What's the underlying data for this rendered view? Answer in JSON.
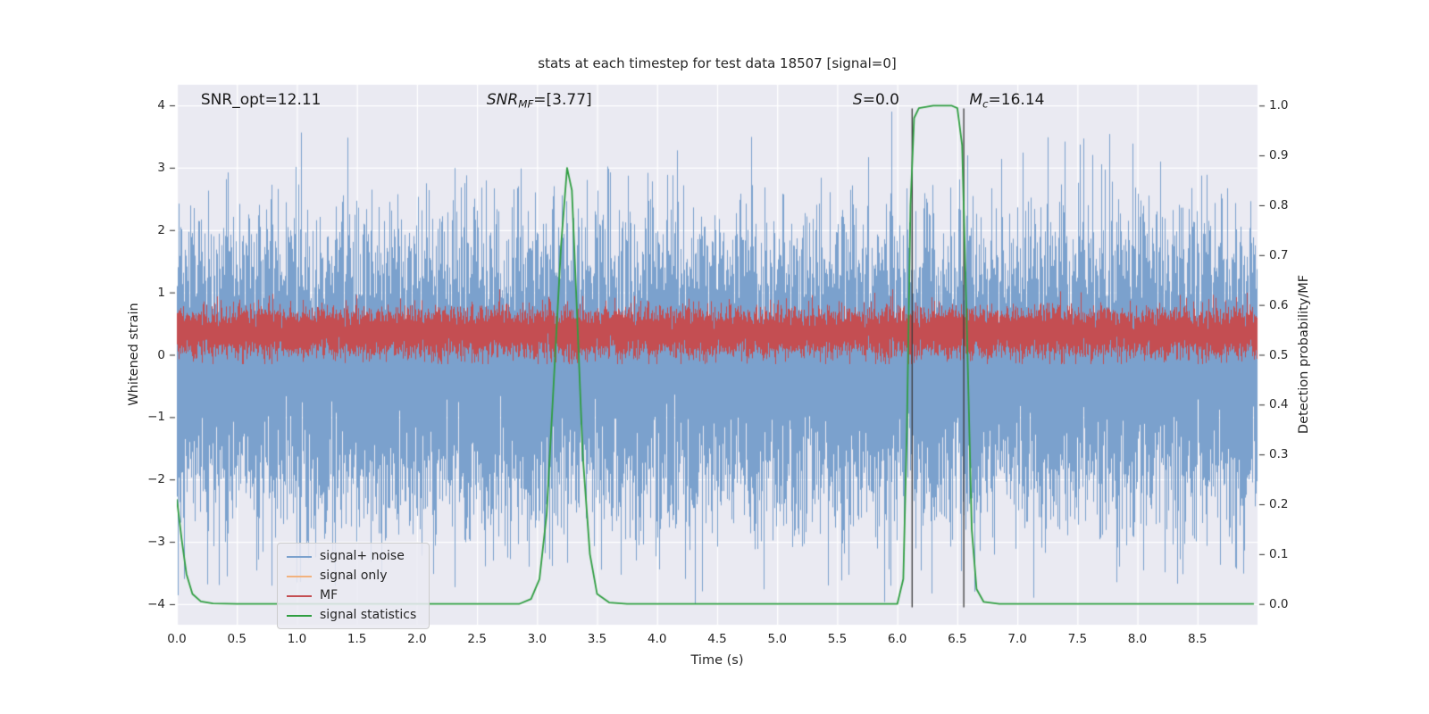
{
  "figure": {
    "title": "stats at each timestep for test data 18507 [signal=0]",
    "axes_bg": "#eaeaf2",
    "grid_color": "#ffffff",
    "text_color": "#262626",
    "tick_color": "#262626"
  },
  "chart_data": {
    "type": "line",
    "title": "stats at each timestep for test data 18507 [signal=0]",
    "xlabel": "Time (s)",
    "ylabel_left": "Whitened strain",
    "ylabel_right": "Detection probability/MF",
    "xlim": [
      0.0,
      9.0
    ],
    "ylim_left": [
      -4.33,
      4.33
    ],
    "ylim_right": [
      -0.0417,
      1.0417
    ],
    "grid": true,
    "x_ticks": [
      0.0,
      0.5,
      1.0,
      1.5,
      2.0,
      2.5,
      3.0,
      3.5,
      4.0,
      4.5,
      5.0,
      5.5,
      6.0,
      6.5,
      7.0,
      7.5,
      8.0,
      8.5
    ],
    "y_ticks_left": [
      -4,
      -3,
      -2,
      -1,
      0,
      1,
      2,
      3,
      4
    ],
    "y_ticks_right": [
      0.0,
      0.1,
      0.2,
      0.3,
      0.4,
      0.5,
      0.6,
      0.7,
      0.8,
      0.9,
      1.0
    ],
    "series": [
      {
        "name": "signal+ noise",
        "type": "noise_envelope",
        "axis": "left",
        "color": "#7ba1cd",
        "mean": -0.25,
        "std": 1.1,
        "samples_per_column": 14,
        "seed": 42,
        "visible_range": [
          -4.15,
          3.9
        ]
      },
      {
        "name": "signal only",
        "type": "none",
        "axis": "left",
        "color": "#f2b27e"
      },
      {
        "name": "MF",
        "type": "noise_envelope",
        "axis": "left",
        "color": "#c44e52",
        "mean": 0.36,
        "std": 0.18,
        "samples_per_column": 14,
        "seed": 1337,
        "visible_range": [
          -0.15,
          1.05
        ]
      },
      {
        "name": "signal statistics",
        "type": "polyline",
        "axis": "right",
        "color": "#2f9e41",
        "points": [
          [
            0.0,
            0.21
          ],
          [
            0.04,
            0.13
          ],
          [
            0.08,
            0.06
          ],
          [
            0.13,
            0.02
          ],
          [
            0.2,
            0.005
          ],
          [
            0.3,
            0.001
          ],
          [
            0.5,
            0.0
          ],
          [
            2.85,
            0.0
          ],
          [
            2.95,
            0.01
          ],
          [
            3.02,
            0.05
          ],
          [
            3.08,
            0.18
          ],
          [
            3.14,
            0.45
          ],
          [
            3.2,
            0.72
          ],
          [
            3.25,
            0.875
          ],
          [
            3.29,
            0.83
          ],
          [
            3.33,
            0.6
          ],
          [
            3.38,
            0.3
          ],
          [
            3.44,
            0.1
          ],
          [
            3.5,
            0.02
          ],
          [
            3.6,
            0.003
          ],
          [
            3.75,
            0.0
          ],
          [
            6.0,
            0.0
          ],
          [
            6.05,
            0.05
          ],
          [
            6.08,
            0.35
          ],
          [
            6.11,
            0.8
          ],
          [
            6.14,
            0.975
          ],
          [
            6.18,
            0.995
          ],
          [
            6.3,
            1.0
          ],
          [
            6.45,
            1.0
          ],
          [
            6.5,
            0.995
          ],
          [
            6.54,
            0.92
          ],
          [
            6.58,
            0.55
          ],
          [
            6.62,
            0.15
          ],
          [
            6.66,
            0.03
          ],
          [
            6.72,
            0.004
          ],
          [
            6.85,
            0.0
          ],
          [
            8.97,
            0.0
          ]
        ]
      }
    ],
    "vlines": {
      "x": [
        6.12,
        6.55
      ],
      "color": "#3a3a3a",
      "y_range": [
        -4.05,
        3.95
      ]
    },
    "annotations": [
      {
        "base": "SNR_opt",
        "sub": "",
        "rest": "=12.11",
        "italic": false,
        "x": 0.2
      },
      {
        "base": "SNR",
        "sub": "MF",
        "rest": "=[3.77]",
        "italic": true,
        "x": 2.58
      },
      {
        "base": "S",
        "sub": "",
        "rest": "=0.0",
        "italic": true,
        "x": 5.63
      },
      {
        "base": "M",
        "sub": "c",
        "rest": "=16.14",
        "italic": true,
        "x": 6.6
      }
    ]
  },
  "legend": {
    "items": [
      {
        "label": "signal+ noise",
        "color": "#7ba1cd"
      },
      {
        "label": "signal only",
        "color": "#f2b27e"
      },
      {
        "label": "MF",
        "color": "#c44e52"
      },
      {
        "label": "signal statistics",
        "color": "#2f9e41"
      }
    ]
  }
}
